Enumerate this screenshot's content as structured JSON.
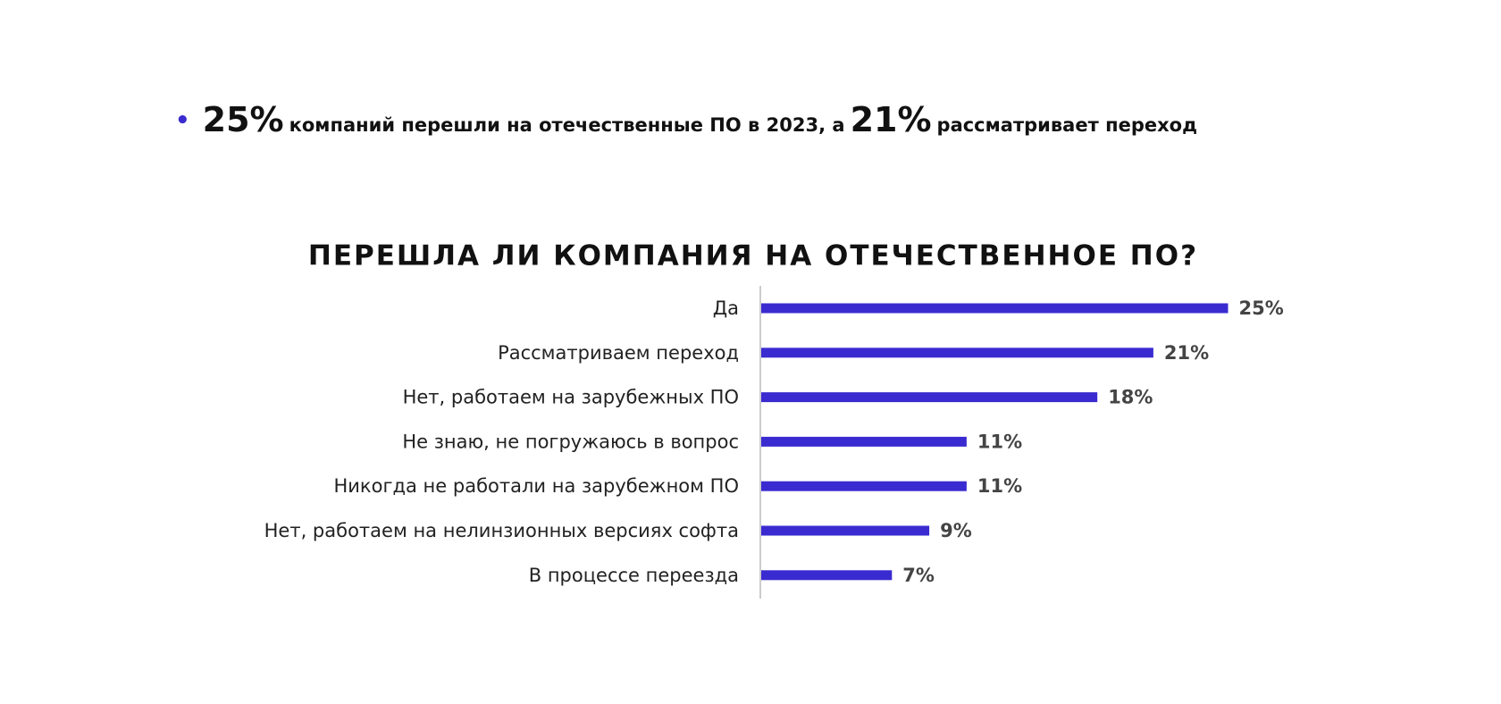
{
  "bullet": [
    "25%",
    "компаний перешли на отечественные ПО в 2023, а",
    "21%",
    "рассматривает переход"
  ],
  "chart_data": {
    "type": "bar",
    "orientation": "horizontal",
    "title": "ПЕРЕШЛА ЛИ КОМПАНИЯ НА ОТЕЧЕСТВЕННОЕ ПО?",
    "categories": [
      "Да",
      "Рассматриваем переход",
      "Нет, работаем на зарубежных ПО",
      "Не знаю, не погружаюсь в вопрос",
      "Никогда не работали на зарубежном ПО",
      "Нет, работаем на нелинзионных версиях софта",
      "В процессе переезда"
    ],
    "values": [
      25,
      21,
      18,
      11,
      11,
      9,
      7
    ],
    "value_labels": [
      "25%",
      "21%",
      "18%",
      "11%",
      "11%",
      "9%",
      "7%"
    ],
    "color": "#3a2bd0"
  }
}
